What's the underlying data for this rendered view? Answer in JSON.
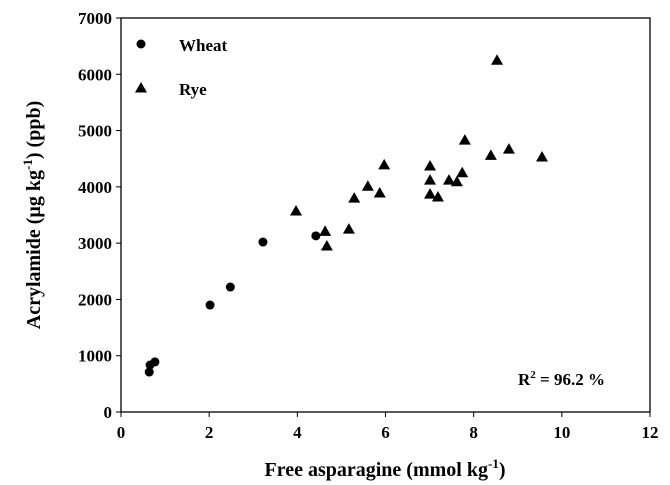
{
  "chart_data": {
    "type": "scatter",
    "xlabel_parts": [
      "Free asparagine (mmol kg",
      "-1",
      ")"
    ],
    "ylabel_parts": [
      "Acrylamide (µg kg",
      "-1",
      ") (ppb)"
    ],
    "annotation_parts": [
      "R",
      "2",
      " = 96.2 %"
    ],
    "xlim": [
      0,
      12
    ],
    "xticks": [
      0,
      2,
      4,
      6,
      8,
      10,
      12
    ],
    "ylim": [
      0,
      7000
    ],
    "yticks": [
      0,
      1000,
      2000,
      3000,
      4000,
      5000,
      6000,
      7000
    ],
    "grid": false,
    "legend": "upper left",
    "series": [
      {
        "name": "Wheat",
        "color": "#000000",
        "marker": "circle",
        "x": [
          0.64,
          0.66,
          0.77,
          2.02,
          2.48,
          3.22,
          4.42
        ],
        "values": [
          710,
          835,
          890,
          1900,
          2220,
          3020,
          3130
        ]
      },
      {
        "name": "Rye",
        "color": "#000000",
        "marker": "triangle",
        "x": [
          3.97,
          4.63,
          4.67,
          5.17,
          5.29,
          5.6,
          5.87,
          5.97,
          7.01,
          7.01,
          7.01,
          7.19,
          7.44,
          7.62,
          7.74,
          7.8,
          8.39,
          8.53,
          8.8,
          9.55
        ],
        "values": [
          3570,
          3210,
          2950,
          3250,
          3800,
          4010,
          3890,
          4390,
          4370,
          4120,
          3870,
          3820,
          4120,
          4090,
          4250,
          4830,
          4560,
          6250,
          4670,
          4530
        ]
      }
    ]
  }
}
